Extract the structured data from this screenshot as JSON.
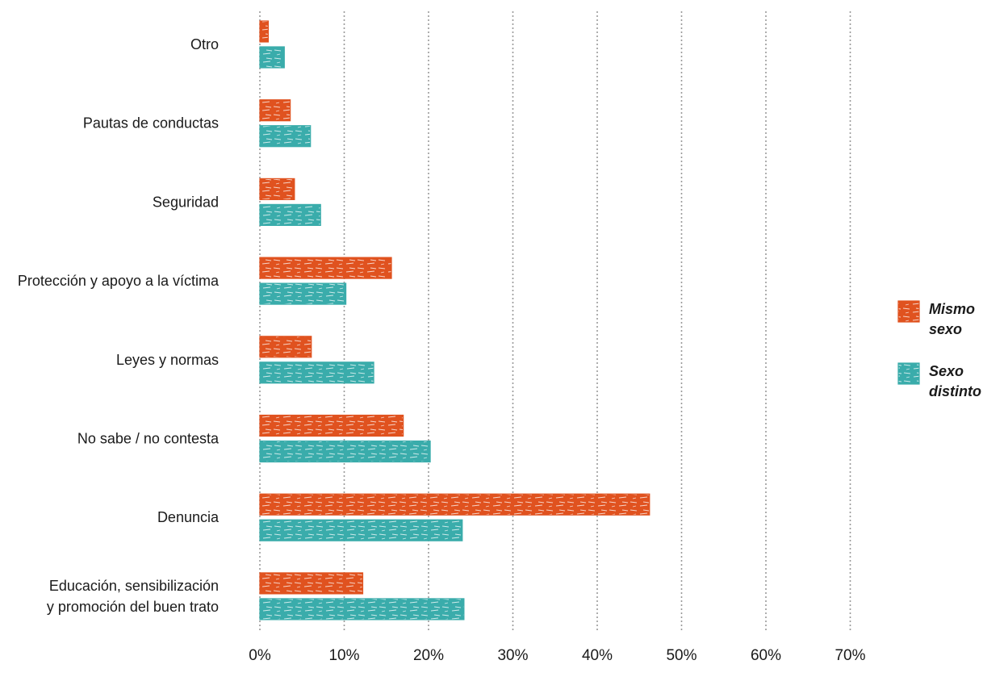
{
  "chart_data": {
    "type": "bar",
    "orientation": "horizontal",
    "categories": [
      "Otro",
      "Pautas de conductas",
      "Seguridad",
      "Protección y apoyo a la víctima",
      "Leyes y normas",
      "No sabe / no contesta",
      "Denuncia",
      "Educación, sensibilización\ny promoción del buen trato"
    ],
    "series": [
      {
        "name": "Mismo sexo",
        "color": "#e0521f",
        "values": [
          1.0,
          3.6,
          4.1,
          15.6,
          6.1,
          17.0,
          46.2,
          12.2
        ]
      },
      {
        "name": "Sexo distinto",
        "color": "#3aacab",
        "values": [
          2.9,
          6.0,
          7.2,
          10.2,
          13.5,
          20.2,
          24.0,
          24.2
        ]
      }
    ],
    "xlim": [
      0,
      70
    ],
    "xticks": [
      "0%",
      "10%",
      "20%",
      "30%",
      "40%",
      "50%",
      "60%",
      "70%"
    ],
    "grid": "vertical-dotted",
    "legend_position": "right",
    "title": "",
    "xlabel": "",
    "ylabel": ""
  }
}
